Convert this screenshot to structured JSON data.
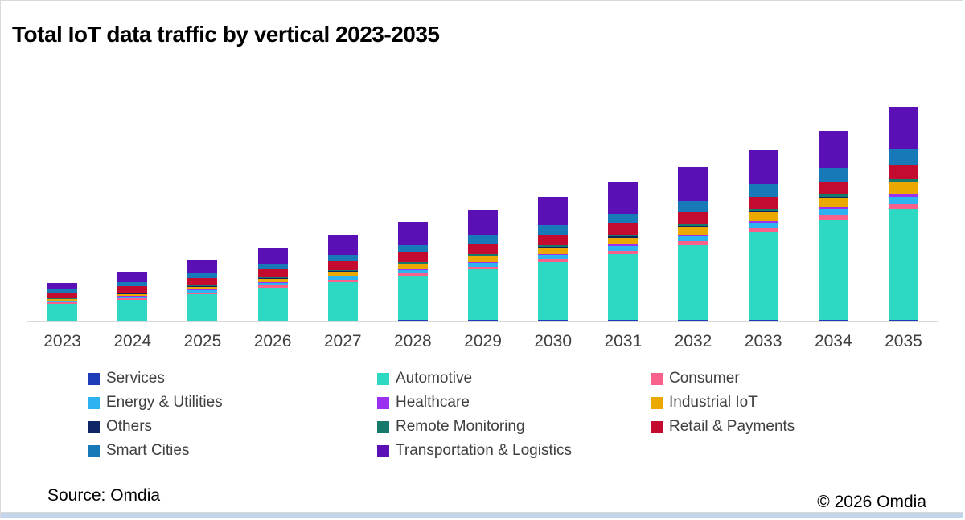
{
  "title": "Total IoT data traffic by vertical 2023-2035",
  "source_label": "Source: Omdia",
  "copyright_label": "© 2026 Omdia",
  "frame": {
    "border_color": "#d9d9d9",
    "bottom_strip_color": "#c3d5ea",
    "axis_color": "#d9d9d9",
    "tick_label_color": "#404040",
    "legend_label_color": "#404040"
  },
  "chart_data": {
    "type": "bar",
    "stacked": true,
    "title": "Total IoT data traffic by vertical 2023-2035",
    "xlabel": "",
    "ylabel": "",
    "y_axis_shown": false,
    "unit": "relative traffic units (no y-axis labels shown)",
    "grid": false,
    "legend_position": "bottom",
    "ylim": [
      0,
      280
    ],
    "categories": [
      "2023",
      "2024",
      "2025",
      "2026",
      "2027",
      "2028",
      "2029",
      "2030",
      "2031",
      "2032",
      "2033",
      "2034",
      "2035"
    ],
    "stack_order_bottom_to_top": [
      "Services",
      "Automotive",
      "Consumer",
      "Energy & Utilities",
      "Healthcare",
      "Industrial IoT",
      "Others",
      "Remote Monitoring",
      "Retail & Payments",
      "Smart Cities",
      "Transportation & Logistics"
    ],
    "series": [
      {
        "name": "Services",
        "color": "#1e3bb8",
        "values": [
          0.3,
          0.4,
          0.4,
          0.5,
          0.5,
          0.6,
          0.7,
          0.8,
          0.9,
          1.0,
          1.1,
          1.2,
          1.3
        ]
      },
      {
        "name": "Automotive",
        "color": "#2ed9c3",
        "values": [
          21,
          26,
          33,
          41,
          48,
          55,
          63,
          72,
          82,
          93,
          109,
          124,
          138
        ]
      },
      {
        "name": "Consumer",
        "color": "#f9608b",
        "values": [
          1.3,
          1.6,
          2.0,
          2.4,
          2.8,
          3.2,
          3.6,
          4.0,
          4.4,
          4.8,
          5.2,
          5.6,
          6.2
        ]
      },
      {
        "name": "Energy & Utilities",
        "color": "#2db4f0",
        "values": [
          1.6,
          2.0,
          2.5,
          3.0,
          3.6,
          4.2,
          4.8,
          5.4,
          6.0,
          6.6,
          7.2,
          8.0,
          9.0
        ]
      },
      {
        "name": "Healthcare",
        "color": "#9b30f0",
        "values": [
          0.5,
          0.6,
          0.7,
          0.8,
          1.0,
          1.1,
          1.2,
          1.3,
          1.5,
          1.6,
          1.8,
          2.0,
          2.2
        ]
      },
      {
        "name": "Industrial IoT",
        "color": "#eba900",
        "values": [
          2.2,
          2.8,
          3.6,
          4.4,
          5.2,
          6.0,
          6.8,
          7.6,
          8.6,
          9.6,
          10.8,
          12.2,
          15.0
        ]
      },
      {
        "name": "Others",
        "color": "#0e2566",
        "values": [
          0.4,
          0.5,
          0.6,
          0.7,
          0.8,
          0.9,
          1.0,
          1.1,
          1.2,
          1.3,
          1.4,
          1.5,
          1.6
        ]
      },
      {
        "name": "Remote Monitoring",
        "color": "#17796b",
        "values": [
          0.7,
          0.8,
          1.0,
          1.2,
          1.4,
          1.6,
          1.8,
          2.0,
          2.2,
          2.4,
          2.6,
          2.8,
          3.0
        ]
      },
      {
        "name": "Retail & Payments",
        "color": "#c40b2f",
        "values": [
          6.8,
          8.0,
          9.0,
          10.0,
          11.0,
          12.0,
          12.6,
          13.3,
          14.0,
          14.7,
          15.4,
          16.2,
          17.5
        ]
      },
      {
        "name": "Smart Cities",
        "color": "#1879b8",
        "values": [
          4.0,
          5.3,
          6.2,
          7.0,
          8.0,
          9.4,
          10.5,
          11.5,
          12.7,
          14.0,
          15.5,
          17.0,
          20.0
        ]
      },
      {
        "name": "Transportation & Logistics",
        "color": "#5a10b5",
        "values": [
          8.2,
          12.0,
          16.0,
          20.0,
          23.7,
          29.0,
          32.0,
          35.0,
          38.5,
          42.0,
          42.0,
          45.5,
          52.0
        ]
      }
    ]
  },
  "legend": {
    "items": [
      {
        "label": "Services",
        "color": "#1e3bb8"
      },
      {
        "label": "Automotive",
        "color": "#2ed9c3"
      },
      {
        "label": "Consumer",
        "color": "#f9608b"
      },
      {
        "label": "Energy & Utilities",
        "color": "#2db4f0"
      },
      {
        "label": "Healthcare",
        "color": "#9b30f0"
      },
      {
        "label": "Industrial IoT",
        "color": "#eba900"
      },
      {
        "label": "Others",
        "color": "#0e2566"
      },
      {
        "label": "Remote Monitoring",
        "color": "#17796b"
      },
      {
        "label": "Retail & Payments",
        "color": "#c40b2f"
      },
      {
        "label": "Smart Cities",
        "color": "#1879b8"
      },
      {
        "label": "Transportation & Logistics",
        "color": "#5a10b5"
      }
    ]
  }
}
